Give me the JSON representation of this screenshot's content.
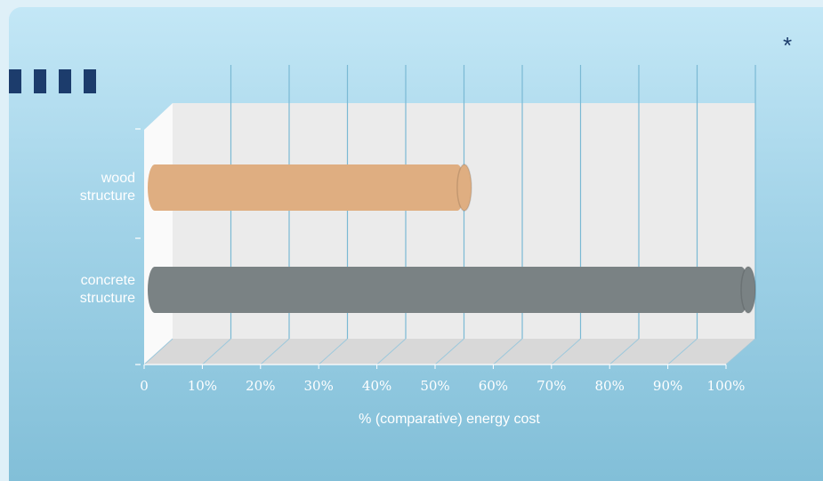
{
  "decor": {
    "asterisk": "*",
    "colors": {
      "logo": "#1c3c6c",
      "background_top": "#c3e7f6",
      "background_bottom": "#82bfd8"
    }
  },
  "chart_data": {
    "type": "bar",
    "orientation": "horizontal",
    "style": "3d-cylinder",
    "categories": [
      "wood\nstructure",
      "concrete\nstructure"
    ],
    "values": [
      53,
      100
    ],
    "colors": [
      "#dfae81",
      "#7a8284"
    ],
    "xlabel": "% (comparative) energy cost",
    "ylabel": "",
    "xlim": [
      0,
      100
    ],
    "xticks": [
      "0",
      "10%",
      "20%",
      "30%",
      "40%",
      "50%",
      "60%",
      "70%",
      "80%",
      "90%",
      "100%"
    ],
    "grid": true,
    "legend": "none"
  }
}
